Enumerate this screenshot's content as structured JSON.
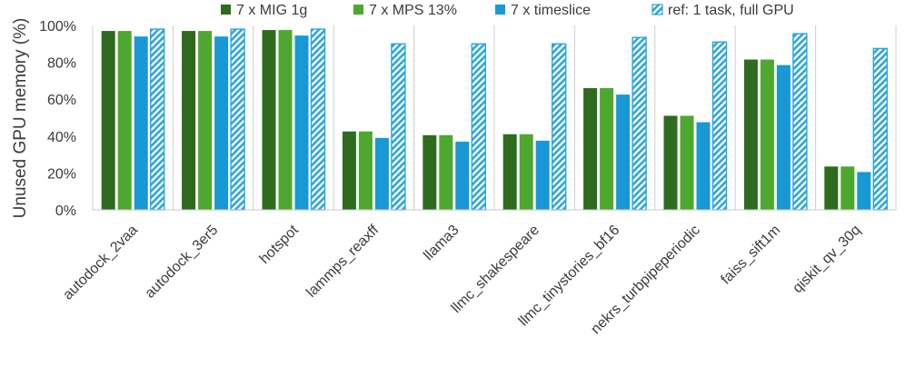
{
  "chart_data": {
    "type": "bar",
    "ylabel": "Unused GPU memory (%)",
    "ylim": [
      0,
      100
    ],
    "yticks": [
      0,
      20,
      40,
      60,
      80,
      100
    ],
    "ytick_labels": [
      "0%",
      "20%",
      "40%",
      "60%",
      "80%",
      "100%"
    ],
    "grid": false,
    "legend_position": "top",
    "categories": [
      "autodock_2vaa",
      "autodock_3er5",
      "hotspot",
      "lammps_reaxff",
      "llama3",
      "llmc_shakespeare",
      "llmc_tinystories_bf16",
      "nekrs_turbpipeperiodic",
      "faiss_sift1m",
      "qiskit_qv_30q"
    ],
    "series": [
      {
        "name": "7 x MIG 1g",
        "color": "#2e6b1f",
        "pattern": "solid",
        "values": [
          97,
          97,
          97.5,
          42.5,
          40.5,
          41,
          66,
          51,
          81.5,
          23.5
        ]
      },
      {
        "name": "7 x MPS 13%",
        "color": "#4ea72e",
        "pattern": "solid",
        "values": [
          97,
          97,
          97.5,
          42.5,
          40.5,
          41,
          66,
          51,
          81.5,
          23.5
        ]
      },
      {
        "name": "7 x timeslice",
        "color": "#1898d5",
        "pattern": "solid",
        "values": [
          94,
          94,
          94.5,
          39,
          37,
          37.5,
          62.5,
          47.5,
          78.5,
          20.5
        ]
      },
      {
        "name": "ref: 1 task, full GPU",
        "color": "#29a5e2",
        "pattern": "diagonal-hatch",
        "values": [
          98,
          98,
          98,
          90,
          90,
          90,
          93.5,
          91,
          95.5,
          87.5
        ]
      }
    ]
  }
}
